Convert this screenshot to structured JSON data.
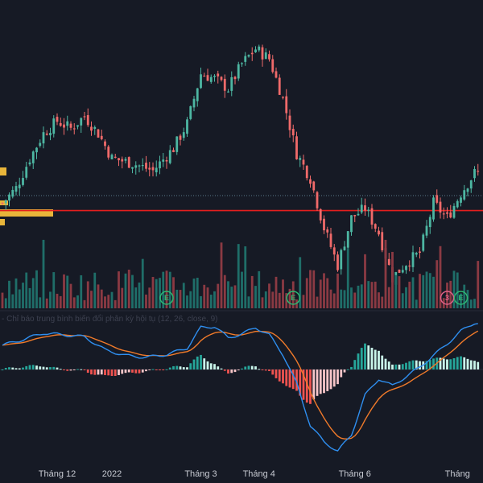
{
  "colors": {
    "background": "#161a25",
    "up": "#26a69a",
    "down": "#ef5350",
    "candle_up": "#4db6a2",
    "candle_down": "#f06a6a",
    "volume_up": "#1f6e69",
    "volume_down": "#8b3a43",
    "support_line": "#e51e1e",
    "dotted_line": "#5a7a8a",
    "macd_line": "#2f8ff0",
    "signal_line": "#f07a2a",
    "hist_up": "#c9f5ea",
    "hist_up_strong": "#26a69a",
    "hist_down": "#f7c5c8",
    "hist_down_strong": "#ef5350",
    "volume_profile": "#e8b53a",
    "marker_green": "#2eb872",
    "marker_red": "#e0628a"
  },
  "macd_title": "- Chỉ báo trung bình biến đổi phân kỳ hội tụ (12, 26, close, 9)",
  "markers": [
    {
      "label": "E",
      "color": "green",
      "bar": 48
    },
    {
      "label": "E",
      "color": "green",
      "bar": 85
    },
    {
      "label": "3",
      "color": "red",
      "bar": 130
    },
    {
      "label": "E",
      "color": "green",
      "bar": 134
    }
  ],
  "chart_data": {
    "type": "candlestick",
    "x_axis_labels": [
      {
        "label": "Tháng 12",
        "bar": 16
      },
      {
        "label": "2022",
        "bar": 32
      },
      {
        "label": "Tháng 3",
        "bar": 58
      },
      {
        "label": "Tháng 4",
        "bar": 75
      },
      {
        "label": "Tháng 6",
        "bar": 103
      },
      {
        "label": "Tháng",
        "bar": 133
      }
    ],
    "support_level": 0.27,
    "dotted_level": 0.33,
    "price_path": [
      [
        0,
        0.3
      ],
      [
        4,
        0.36
      ],
      [
        8,
        0.48
      ],
      [
        12,
        0.58
      ],
      [
        16,
        0.63
      ],
      [
        20,
        0.6
      ],
      [
        24,
        0.65
      ],
      [
        28,
        0.58
      ],
      [
        32,
        0.48
      ],
      [
        38,
        0.46
      ],
      [
        44,
        0.43
      ],
      [
        50,
        0.52
      ],
      [
        54,
        0.62
      ],
      [
        58,
        0.82
      ],
      [
        62,
        0.8
      ],
      [
        66,
        0.76
      ],
      [
        70,
        0.86
      ],
      [
        74,
        0.92
      ],
      [
        78,
        0.88
      ],
      [
        82,
        0.72
      ],
      [
        86,
        0.5
      ],
      [
        90,
        0.4
      ],
      [
        94,
        0.2
      ],
      [
        98,
        0.05
      ],
      [
        102,
        0.24
      ],
      [
        106,
        0.28
      ],
      [
        110,
        0.18
      ],
      [
        114,
        0.0
      ],
      [
        118,
        0.06
      ],
      [
        122,
        0.1
      ],
      [
        126,
        0.3
      ],
      [
        130,
        0.24
      ],
      [
        134,
        0.34
      ],
      [
        138,
        0.42
      ]
    ],
    "macd_path": [
      [
        0,
        0.52
      ],
      [
        6,
        0.64
      ],
      [
        12,
        0.78
      ],
      [
        18,
        0.74
      ],
      [
        24,
        0.7
      ],
      [
        30,
        0.42
      ],
      [
        36,
        0.3
      ],
      [
        42,
        0.26
      ],
      [
        48,
        0.32
      ],
      [
        54,
        0.46
      ],
      [
        58,
        0.9
      ],
      [
        62,
        0.92
      ],
      [
        66,
        0.68
      ],
      [
        70,
        0.76
      ],
      [
        74,
        0.9
      ],
      [
        78,
        0.74
      ],
      [
        82,
        0.32
      ],
      [
        86,
        -0.3
      ],
      [
        90,
        -1.2
      ],
      [
        94,
        -1.55
      ],
      [
        98,
        -1.75
      ],
      [
        102,
        -1.4
      ],
      [
        106,
        -0.55
      ],
      [
        110,
        -0.2
      ],
      [
        114,
        -0.35
      ],
      [
        118,
        -0.15
      ],
      [
        122,
        0.05
      ],
      [
        126,
        0.3
      ],
      [
        130,
        0.55
      ],
      [
        134,
        0.82
      ],
      [
        138,
        1.0
      ]
    ],
    "volume_seed": 7
  }
}
